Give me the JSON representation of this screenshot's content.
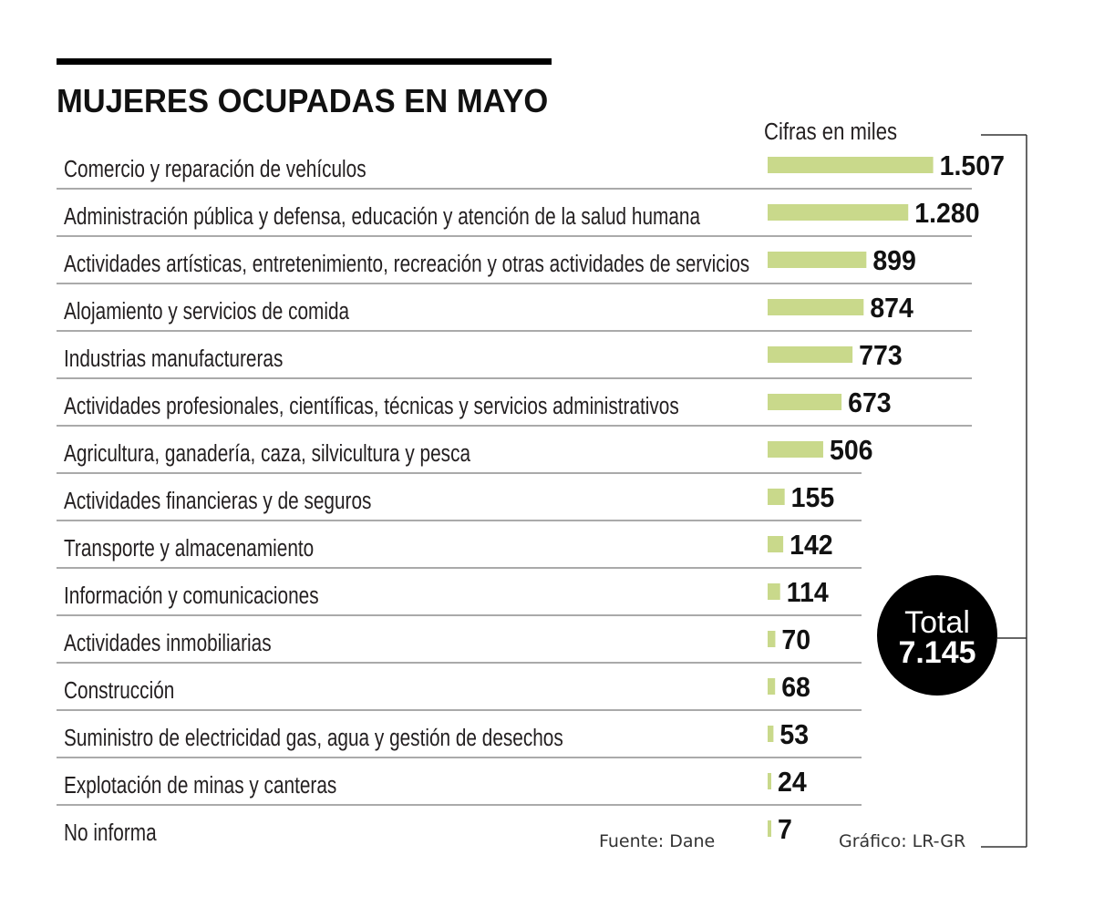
{
  "chart_data": {
    "type": "bar",
    "orientation": "horizontal",
    "title": "MUJERES OCUPADAS EN MAYO",
    "unit_note": "Cifras en miles",
    "categories": [
      "Comercio y reparación de vehículos",
      "Administración pública y defensa, educación y atención de la salud humana",
      "Actividades artísticas, entretenimiento, recreación y otras actividades de servicios",
      "Alojamiento y servicios de comida",
      "Industrias manufactureras",
      "Actividades profesionales, científicas, técnicas y servicios administrativos",
      "Agricultura, ganadería, caza, silvicultura y pesca",
      "Actividades financieras y de seguros",
      "Transporte y almacenamiento",
      "Información y comunicaciones",
      "Actividades inmobiliarias",
      "Construcción",
      "Suministro de electricidad gas, agua y gestión de desechos",
      "Explotación de minas y canteras",
      "No informa"
    ],
    "values": [
      1507,
      1280,
      899,
      874,
      773,
      673,
      506,
      155,
      142,
      114,
      70,
      68,
      53,
      24,
      7
    ],
    "value_labels": [
      "1.507",
      "1.280",
      "899",
      "874",
      "773",
      "673",
      "506",
      "155",
      "142",
      "114",
      "70",
      "68",
      "53",
      "24",
      "7"
    ],
    "total_label": "Total",
    "total_value_label": "7.145",
    "source": "Fuente: Dane",
    "credit": "Gráfico: LR-GR"
  },
  "colors": {
    "bar": "#c9d98b",
    "rule": "#000000",
    "total_circle": "#000000"
  }
}
